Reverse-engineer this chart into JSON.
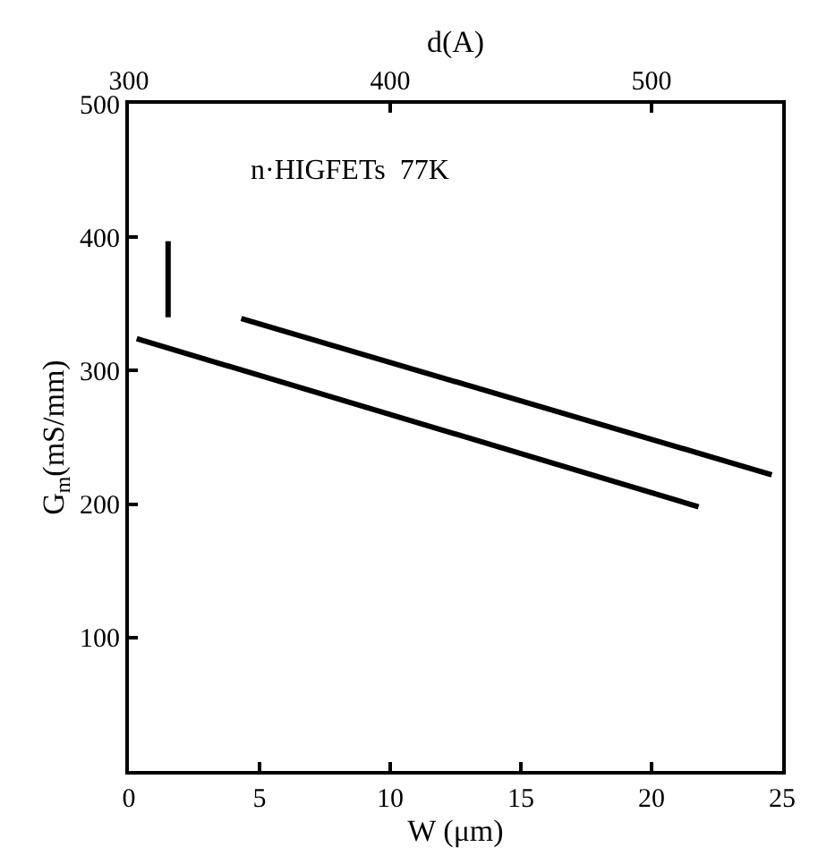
{
  "chart_data": {
    "type": "line",
    "xlabel": "W (μm)",
    "ylabel": "G$_{m}$(mS/mm)",
    "x2label": "d(A)",
    "annotations": [
      "n·HIGFETs  77K"
    ],
    "series": [
      {
        "color": "#000000",
        "x": [
          0.3,
          21.8
        ],
        "values": [
          324,
          198
        ]
      },
      {
        "color": "#000000",
        "x": [
          4.3,
          24.6
        ],
        "values": [
          339,
          222
        ]
      },
      {
        "color": "#000000",
        "x": [
          1.5,
          1.5
        ],
        "values": [
          397,
          340
        ]
      }
    ],
    "xlim": [
      0,
      25
    ],
    "xticks": [
      0,
      5,
      10,
      15,
      20,
      25
    ],
    "ylim": [
      0,
      500
    ],
    "yticks": [
      100,
      200,
      300,
      400,
      500
    ],
    "x2lim": [
      300,
      550
    ],
    "x2ticks": [
      300,
      400,
      500
    ],
    "marker": "none",
    "line_style": "solid"
  }
}
